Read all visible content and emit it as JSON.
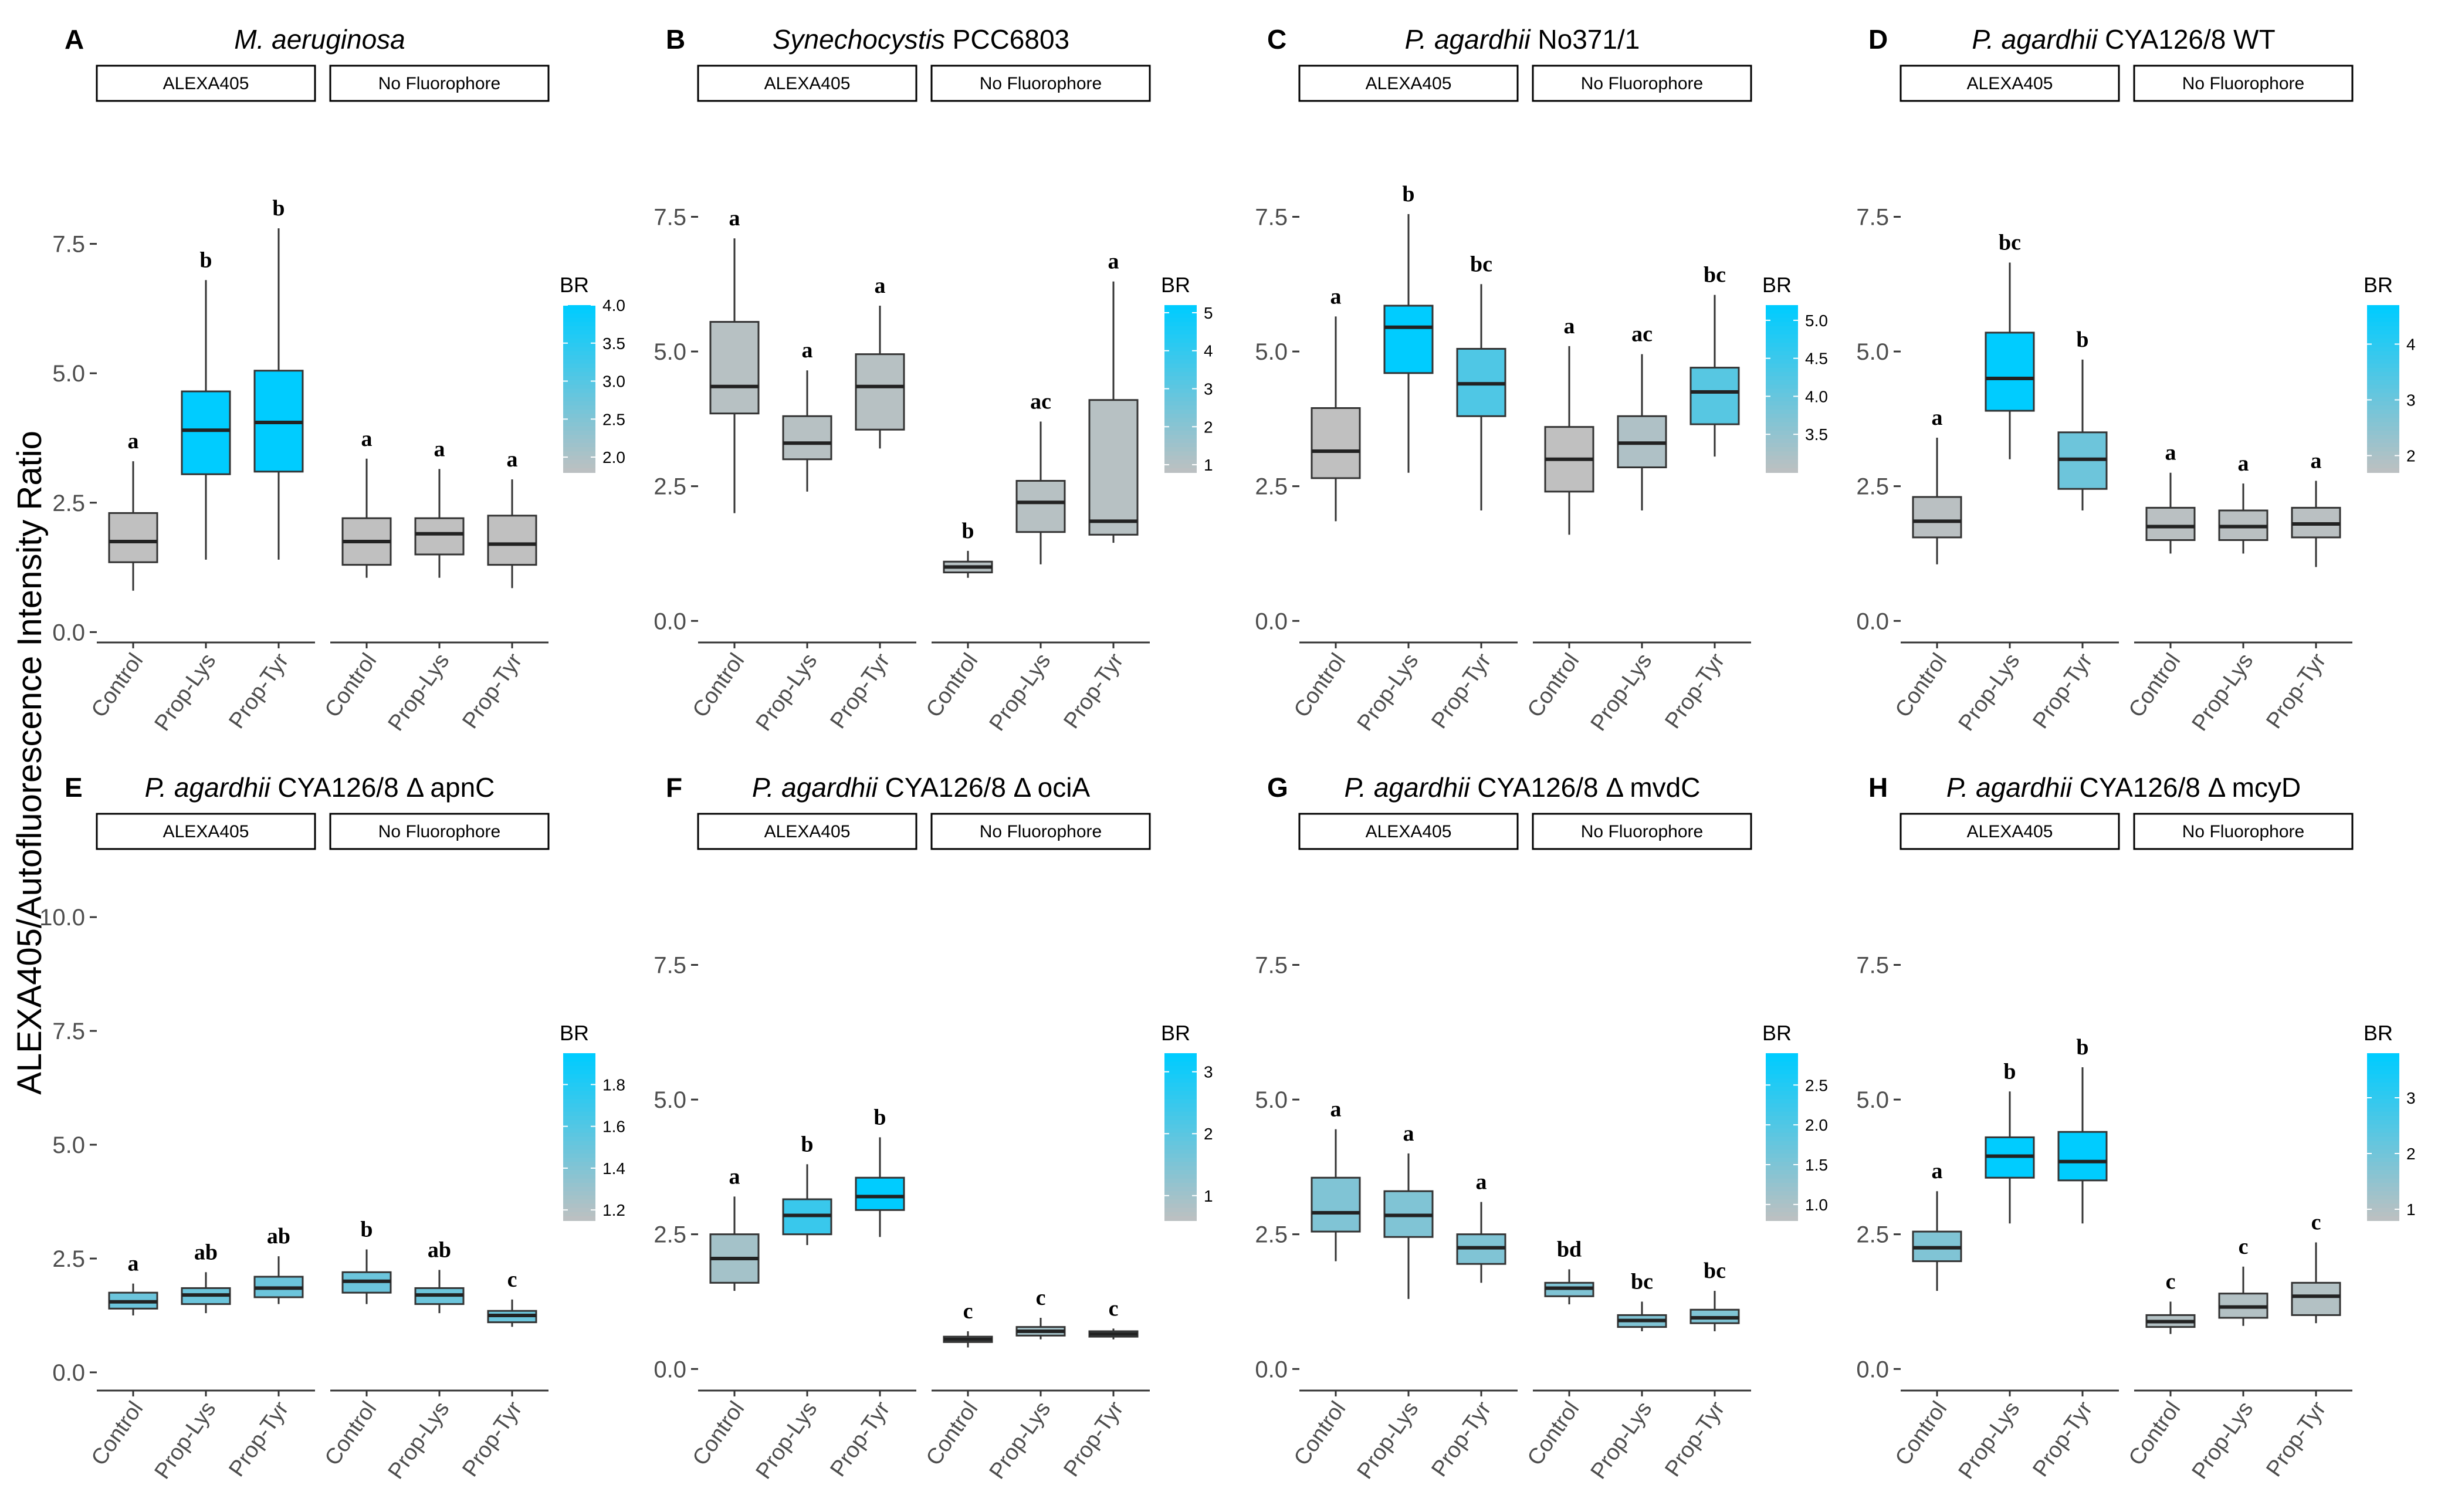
{
  "figure": {
    "y_axis_label": "ALEXA405/Autofluorescence Intensity Ratio"
  },
  "chart_data": [
    {
      "type": "boxplot",
      "panel": "A",
      "title_italic": "M. aeruginosa",
      "title_plain": "",
      "facets": [
        "ALEXA405",
        "No Fluorophore"
      ],
      "categories": [
        "Control",
        "Prop-Lys",
        "Prop-Tyr"
      ],
      "ylim": [
        -0.2,
        10
      ],
      "yticks": [
        0.0,
        2.5,
        5.0,
        7.5
      ],
      "ytick_labels": [
        "0.0",
        "2.5",
        "5.0",
        "7.5"
      ],
      "legend": {
        "title": "BR",
        "range": [
          1.8,
          4.0
        ],
        "ticks": [
          2.0,
          2.5,
          3.0,
          3.5,
          4.0
        ],
        "tick_labels": [
          "2.0",
          "2.5",
          "3.0",
          "3.5",
          "4.0"
        ]
      },
      "boxes": [
        {
          "facet": "ALEXA405",
          "category": "Control",
          "lower_whisker": 0.8,
          "q1": 1.35,
          "median": 1.75,
          "q3": 2.3,
          "upper_whisker": 3.3,
          "br": 1.8,
          "letter": "a"
        },
        {
          "facet": "ALEXA405",
          "category": "Prop-Lys",
          "lower_whisker": 1.4,
          "q1": 3.05,
          "median": 3.9,
          "q3": 4.65,
          "upper_whisker": 6.8,
          "br": 4.0,
          "letter": "b"
        },
        {
          "facet": "ALEXA405",
          "category": "Prop-Tyr",
          "lower_whisker": 1.4,
          "q1": 3.1,
          "median": 4.05,
          "q3": 5.05,
          "upper_whisker": 7.8,
          "br": 4.0,
          "letter": "b"
        },
        {
          "facet": "No Fluorophore",
          "category": "Control",
          "lower_whisker": 1.05,
          "q1": 1.3,
          "median": 1.75,
          "q3": 2.2,
          "upper_whisker": 3.35,
          "br": 1.8,
          "letter": "a"
        },
        {
          "facet": "No Fluorophore",
          "category": "Prop-Lys",
          "lower_whisker": 1.05,
          "q1": 1.5,
          "median": 1.9,
          "q3": 2.2,
          "upper_whisker": 3.15,
          "br": 1.8,
          "letter": "a"
        },
        {
          "facet": "No Fluorophore",
          "category": "Prop-Tyr",
          "lower_whisker": 0.85,
          "q1": 1.3,
          "median": 1.7,
          "q3": 2.25,
          "upper_whisker": 2.95,
          "br": 1.8,
          "letter": "a"
        }
      ]
    },
    {
      "type": "boxplot",
      "panel": "B",
      "title_italic": "Synechocystis",
      "title_plain": " PCC6803",
      "facets": [
        "ALEXA405",
        "No Fluorophore"
      ],
      "categories": [
        "Control",
        "Prop-Lys",
        "Prop-Tyr"
      ],
      "ylim": [
        -0.4,
        9.4
      ],
      "yticks": [
        0.0,
        2.5,
        5.0,
        7.5
      ],
      "ytick_labels": [
        "0.0",
        "2.5",
        "5.0",
        "7.5"
      ],
      "legend": {
        "title": "BR",
        "range": [
          0.8,
          5.2
        ],
        "ticks": [
          1,
          2,
          3,
          4,
          5
        ],
        "tick_labels": [
          "1",
          "2",
          "3",
          "4",
          "5"
        ]
      },
      "boxes": [
        {
          "facet": "ALEXA405",
          "category": "Control",
          "lower_whisker": 2.0,
          "q1": 3.85,
          "median": 4.35,
          "q3": 5.55,
          "upper_whisker": 7.1,
          "br": 1.0,
          "letter": "a"
        },
        {
          "facet": "ALEXA405",
          "category": "Prop-Lys",
          "lower_whisker": 2.4,
          "q1": 3.0,
          "median": 3.3,
          "q3": 3.8,
          "upper_whisker": 4.65,
          "br": 1.0,
          "letter": "a"
        },
        {
          "facet": "ALEXA405",
          "category": "Prop-Tyr",
          "lower_whisker": 3.2,
          "q1": 3.55,
          "median": 4.35,
          "q3": 4.95,
          "upper_whisker": 5.85,
          "br": 1.0,
          "letter": "a"
        },
        {
          "facet": "No Fluorophore",
          "category": "Control",
          "lower_whisker": 0.8,
          "q1": 0.9,
          "median": 1.0,
          "q3": 1.1,
          "upper_whisker": 1.3,
          "br": 1.0,
          "letter": "b"
        },
        {
          "facet": "No Fluorophore",
          "category": "Prop-Lys",
          "lower_whisker": 1.05,
          "q1": 1.65,
          "median": 2.2,
          "q3": 2.6,
          "upper_whisker": 3.7,
          "br": 1.0,
          "letter": "ac"
        },
        {
          "facet": "No Fluorophore",
          "category": "Prop-Tyr",
          "lower_whisker": 1.45,
          "q1": 1.6,
          "median": 1.85,
          "q3": 4.1,
          "upper_whisker": 6.3,
          "br": 1.0,
          "letter": "a"
        }
      ]
    },
    {
      "type": "boxplot",
      "panel": "C",
      "title_italic": "P. agardhii",
      "title_plain": "  No371/1",
      "facets": [
        "ALEXA405",
        "No Fluorophore"
      ],
      "categories": [
        "Control",
        "Prop-Lys",
        "Prop-Tyr"
      ],
      "ylim": [
        -0.4,
        9.4
      ],
      "yticks": [
        0.0,
        2.5,
        5.0,
        7.5
      ],
      "ytick_labels": [
        "0.0",
        "2.5",
        "5.0",
        "7.5"
      ],
      "legend": {
        "title": "BR",
        "range": [
          3.0,
          5.2
        ],
        "ticks": [
          3.5,
          4.0,
          4.5,
          5.0
        ],
        "tick_labels": [
          "3.5",
          "4.0",
          "4.5",
          "5.0"
        ]
      },
      "boxes": [
        {
          "facet": "ALEXA405",
          "category": "Control",
          "lower_whisker": 1.85,
          "q1": 2.65,
          "median": 3.15,
          "q3": 3.95,
          "upper_whisker": 5.65,
          "br": 3.0,
          "letter": "a"
        },
        {
          "facet": "ALEXA405",
          "category": "Prop-Lys",
          "lower_whisker": 2.75,
          "q1": 4.6,
          "median": 5.45,
          "q3": 5.85,
          "upper_whisker": 7.55,
          "br": 5.2,
          "letter": "b"
        },
        {
          "facet": "ALEXA405",
          "category": "Prop-Tyr",
          "lower_whisker": 2.05,
          "q1": 3.8,
          "median": 4.4,
          "q3": 5.05,
          "upper_whisker": 6.25,
          "br": 4.3,
          "letter": "bc"
        },
        {
          "facet": "No Fluorophore",
          "category": "Control",
          "lower_whisker": 1.6,
          "q1": 2.4,
          "median": 3.0,
          "q3": 3.6,
          "upper_whisker": 5.1,
          "br": 3.0,
          "letter": "a"
        },
        {
          "facet": "No Fluorophore",
          "category": "Prop-Lys",
          "lower_whisker": 2.05,
          "q1": 2.85,
          "median": 3.3,
          "q3": 3.8,
          "upper_whisker": 4.95,
          "br": 3.2,
          "letter": "ac"
        },
        {
          "facet": "No Fluorophore",
          "category": "Prop-Tyr",
          "lower_whisker": 3.05,
          "q1": 3.65,
          "median": 4.25,
          "q3": 4.7,
          "upper_whisker": 6.05,
          "br": 4.2,
          "letter": "bc"
        }
      ]
    },
    {
      "type": "boxplot",
      "panel": "D",
      "title_italic": "P. agardhii",
      "title_plain": "  CYA126/8 WT",
      "facets": [
        "ALEXA405",
        "No Fluorophore"
      ],
      "categories": [
        "Control",
        "Prop-Lys",
        "Prop-Tyr"
      ],
      "ylim": [
        -0.4,
        9.4
      ],
      "yticks": [
        0.0,
        2.5,
        5.0,
        7.5
      ],
      "ytick_labels": [
        "0.0",
        "2.5",
        "5.0",
        "7.5"
      ],
      "legend": {
        "title": "BR",
        "range": [
          1.7,
          4.7
        ],
        "ticks": [
          2,
          3,
          4
        ],
        "tick_labels": [
          "2",
          "3",
          "4"
        ]
      },
      "boxes": [
        {
          "facet": "ALEXA405",
          "category": "Control",
          "lower_whisker": 1.05,
          "q1": 1.55,
          "median": 1.85,
          "q3": 2.3,
          "upper_whisker": 3.4,
          "br": 1.8,
          "letter": "a"
        },
        {
          "facet": "ALEXA405",
          "category": "Prop-Lys",
          "lower_whisker": 3.0,
          "q1": 3.9,
          "median": 4.5,
          "q3": 5.35,
          "upper_whisker": 6.65,
          "br": 4.7,
          "letter": "bc"
        },
        {
          "facet": "ALEXA405",
          "category": "Prop-Tyr",
          "lower_whisker": 2.05,
          "q1": 2.45,
          "median": 3.0,
          "q3": 3.5,
          "upper_whisker": 4.85,
          "br": 3.0,
          "letter": "b"
        },
        {
          "facet": "No Fluorophore",
          "category": "Control",
          "lower_whisker": 1.25,
          "q1": 1.5,
          "median": 1.75,
          "q3": 2.1,
          "upper_whisker": 2.75,
          "br": 1.8,
          "letter": "a"
        },
        {
          "facet": "No Fluorophore",
          "category": "Prop-Lys",
          "lower_whisker": 1.25,
          "q1": 1.5,
          "median": 1.75,
          "q3": 2.05,
          "upper_whisker": 2.55,
          "br": 1.8,
          "letter": "a"
        },
        {
          "facet": "No Fluorophore",
          "category": "Prop-Tyr",
          "lower_whisker": 1.0,
          "q1": 1.55,
          "median": 1.8,
          "q3": 2.1,
          "upper_whisker": 2.6,
          "br": 1.8,
          "letter": "a"
        }
      ]
    },
    {
      "type": "boxplot",
      "panel": "E",
      "title_italic": "P. agardhii",
      "title_plain": "  CYA126/8 Δ apnC",
      "facets": [
        "ALEXA405",
        "No Fluorophore"
      ],
      "categories": [
        "Control",
        "Prop-Lys",
        "Prop-Tyr"
      ],
      "ylim": [
        -0.4,
        11.2
      ],
      "yticks": [
        0.0,
        2.5,
        5.0,
        7.5,
        10.0
      ],
      "ytick_labels": [
        "0.0",
        "2.5",
        "5.0",
        "7.5",
        "10.0"
      ],
      "legend": {
        "title": "BR",
        "range": [
          1.15,
          1.95
        ],
        "ticks": [
          1.2,
          1.4,
          1.6,
          1.8
        ],
        "tick_labels": [
          "1.2",
          "1.4",
          "1.6",
          "1.8"
        ]
      },
      "boxes": [
        {
          "facet": "ALEXA405",
          "category": "Control",
          "lower_whisker": 1.25,
          "q1": 1.4,
          "median": 1.55,
          "q3": 1.75,
          "upper_whisker": 1.95,
          "br": 1.5,
          "letter": "a"
        },
        {
          "facet": "ALEXA405",
          "category": "Prop-Lys",
          "lower_whisker": 1.3,
          "q1": 1.5,
          "median": 1.7,
          "q3": 1.85,
          "upper_whisker": 2.2,
          "br": 1.5,
          "letter": "ab"
        },
        {
          "facet": "ALEXA405",
          "category": "Prop-Tyr",
          "lower_whisker": 1.5,
          "q1": 1.65,
          "median": 1.85,
          "q3": 2.1,
          "upper_whisker": 2.55,
          "br": 1.5,
          "letter": "ab"
        },
        {
          "facet": "No Fluorophore",
          "category": "Control",
          "lower_whisker": 1.5,
          "q1": 1.75,
          "median": 2.0,
          "q3": 2.2,
          "upper_whisker": 2.7,
          "br": 1.5,
          "letter": "b"
        },
        {
          "facet": "No Fluorophore",
          "category": "Prop-Lys",
          "lower_whisker": 1.3,
          "q1": 1.5,
          "median": 1.7,
          "q3": 1.85,
          "upper_whisker": 2.25,
          "br": 1.5,
          "letter": "ab"
        },
        {
          "facet": "No Fluorophore",
          "category": "Prop-Tyr",
          "lower_whisker": 1.0,
          "q1": 1.1,
          "median": 1.25,
          "q3": 1.35,
          "upper_whisker": 1.6,
          "br": 1.5,
          "letter": "c"
        }
      ]
    },
    {
      "type": "boxplot",
      "panel": "F",
      "title_italic": "P. agardhii",
      "title_plain": "  CYA126/8 Δ ociA",
      "facets": [
        "ALEXA405",
        "No Fluorophore"
      ],
      "categories": [
        "Control",
        "Prop-Lys",
        "Prop-Tyr"
      ],
      "ylim": [
        -0.4,
        9.4
      ],
      "yticks": [
        0.0,
        2.5,
        5.0,
        7.5
      ],
      "ytick_labels": [
        "0.0",
        "2.5",
        "5.0",
        "7.5"
      ],
      "legend": {
        "title": "BR",
        "range": [
          0.6,
          3.3
        ],
        "ticks": [
          1,
          2,
          3
        ],
        "tick_labels": [
          "1",
          "2",
          "3"
        ]
      },
      "boxes": [
        {
          "facet": "ALEXA405",
          "category": "Control",
          "lower_whisker": 1.45,
          "q1": 1.6,
          "median": 2.05,
          "q3": 2.5,
          "upper_whisker": 3.2,
          "br": 1.0,
          "letter": "a"
        },
        {
          "facet": "ALEXA405",
          "category": "Prop-Lys",
          "lower_whisker": 2.3,
          "q1": 2.5,
          "median": 2.85,
          "q3": 3.15,
          "upper_whisker": 3.8,
          "br": 2.5,
          "letter": "b"
        },
        {
          "facet": "ALEXA405",
          "category": "Prop-Tyr",
          "lower_whisker": 2.45,
          "q1": 2.95,
          "median": 3.2,
          "q3": 3.55,
          "upper_whisker": 4.3,
          "br": 3.3,
          "letter": "b"
        },
        {
          "facet": "No Fluorophore",
          "category": "Control",
          "lower_whisker": 0.4,
          "q1": 0.5,
          "median": 0.55,
          "q3": 0.6,
          "upper_whisker": 0.7,
          "br": 1.0,
          "letter": "c"
        },
        {
          "facet": "No Fluorophore",
          "category": "Prop-Lys",
          "lower_whisker": 0.55,
          "q1": 0.62,
          "median": 0.7,
          "q3": 0.78,
          "upper_whisker": 0.95,
          "br": 1.0,
          "letter": "c"
        },
        {
          "facet": "No Fluorophore",
          "category": "Prop-Tyr",
          "lower_whisker": 0.55,
          "q1": 0.6,
          "median": 0.65,
          "q3": 0.7,
          "upper_whisker": 0.75,
          "br": 1.0,
          "letter": "c"
        }
      ]
    },
    {
      "type": "boxplot",
      "panel": "G",
      "title_italic": "P. agardhii",
      "title_plain": "  CYA126/8 Δ mvdC",
      "facets": [
        "ALEXA405",
        "No Fluorophore"
      ],
      "categories": [
        "Control",
        "Prop-Lys",
        "Prop-Tyr"
      ],
      "ylim": [
        -0.4,
        9.4
      ],
      "yticks": [
        0.0,
        2.5,
        5.0,
        7.5
      ],
      "ytick_labels": [
        "0.0",
        "2.5",
        "5.0",
        "7.5"
      ],
      "legend": {
        "title": "BR",
        "range": [
          0.8,
          2.9
        ],
        "ticks": [
          1.0,
          1.5,
          2.0,
          2.5
        ],
        "tick_labels": [
          "1.0",
          "1.5",
          "2.0",
          "2.5"
        ]
      },
      "boxes": [
        {
          "facet": "ALEXA405",
          "category": "Control",
          "lower_whisker": 2.0,
          "q1": 2.55,
          "median": 2.9,
          "q3": 3.55,
          "upper_whisker": 4.45,
          "br": 1.5,
          "letter": "a"
        },
        {
          "facet": "ALEXA405",
          "category": "Prop-Lys",
          "lower_whisker": 1.3,
          "q1": 2.45,
          "median": 2.85,
          "q3": 3.3,
          "upper_whisker": 4.0,
          "br": 1.5,
          "letter": "a"
        },
        {
          "facet": "ALEXA405",
          "category": "Prop-Tyr",
          "lower_whisker": 1.6,
          "q1": 1.95,
          "median": 2.25,
          "q3": 2.5,
          "upper_whisker": 3.1,
          "br": 1.5,
          "letter": "a"
        },
        {
          "facet": "No Fluorophore",
          "category": "Control",
          "lower_whisker": 1.2,
          "q1": 1.35,
          "median": 1.5,
          "q3": 1.6,
          "upper_whisker": 1.85,
          "br": 1.5,
          "letter": "bd"
        },
        {
          "facet": "No Fluorophore",
          "category": "Prop-Lys",
          "lower_whisker": 0.7,
          "q1": 0.78,
          "median": 0.9,
          "q3": 1.0,
          "upper_whisker": 1.25,
          "br": 1.5,
          "letter": "bc"
        },
        {
          "facet": "No Fluorophore",
          "category": "Prop-Tyr",
          "lower_whisker": 0.7,
          "q1": 0.85,
          "median": 0.95,
          "q3": 1.1,
          "upper_whisker": 1.45,
          "br": 1.5,
          "letter": "bc"
        }
      ]
    },
    {
      "type": "boxplot",
      "panel": "H",
      "title_italic": "P. agardhii",
      "title_plain": "  CYA126/8 Δ mcyD",
      "facets": [
        "ALEXA405",
        "No Fluorophore"
      ],
      "categories": [
        "Control",
        "Prop-Lys",
        "Prop-Tyr"
      ],
      "ylim": [
        -0.4,
        9.4
      ],
      "yticks": [
        0.0,
        2.5,
        5.0,
        7.5
      ],
      "ytick_labels": [
        "0.0",
        "2.5",
        "5.0",
        "7.5"
      ],
      "legend": {
        "title": "BR",
        "range": [
          0.8,
          3.8
        ],
        "ticks": [
          1,
          2,
          3
        ],
        "tick_labels": [
          "1",
          "2",
          "3"
        ]
      },
      "boxes": [
        {
          "facet": "ALEXA405",
          "category": "Control",
          "lower_whisker": 1.45,
          "q1": 2.0,
          "median": 2.25,
          "q3": 2.55,
          "upper_whisker": 3.3,
          "br": 1.8,
          "letter": "a"
        },
        {
          "facet": "ALEXA405",
          "category": "Prop-Lys",
          "lower_whisker": 2.7,
          "q1": 3.55,
          "median": 3.95,
          "q3": 4.3,
          "upper_whisker": 5.15,
          "br": 3.8,
          "letter": "b"
        },
        {
          "facet": "ALEXA405",
          "category": "Prop-Tyr",
          "lower_whisker": 2.7,
          "q1": 3.5,
          "median": 3.85,
          "q3": 4.4,
          "upper_whisker": 5.6,
          "br": 3.8,
          "letter": "b"
        },
        {
          "facet": "No Fluorophore",
          "category": "Control",
          "lower_whisker": 0.65,
          "q1": 0.78,
          "median": 0.88,
          "q3": 1.0,
          "upper_whisker": 1.25,
          "br": 1.0,
          "letter": "c"
        },
        {
          "facet": "No Fluorophore",
          "category": "Prop-Lys",
          "lower_whisker": 0.8,
          "q1": 0.95,
          "median": 1.15,
          "q3": 1.4,
          "upper_whisker": 1.9,
          "br": 1.0,
          "letter": "c"
        },
        {
          "facet": "No Fluorophore",
          "category": "Prop-Tyr",
          "lower_whisker": 0.85,
          "q1": 1.0,
          "median": 1.35,
          "q3": 1.6,
          "upper_whisker": 2.35,
          "br": 1.0,
          "letter": "c"
        }
      ]
    }
  ]
}
